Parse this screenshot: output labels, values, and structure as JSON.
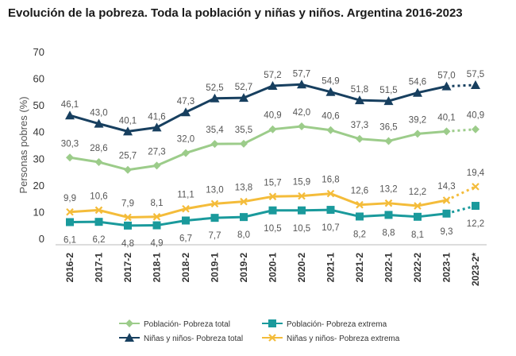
{
  "title": "Evolución de la pobreza. Toda la población y niñas y niños. Argentina 2016-2023",
  "chart_data": {
    "type": "line",
    "title": "Evolución de la pobreza. Toda la población y niñas y niños. Argentina 2016-2023",
    "xlabel": "",
    "ylabel": "Personas pobres (%)",
    "ylim": [
      0,
      70
    ],
    "yticks": [
      0,
      10,
      20,
      30,
      40,
      50,
      60,
      70
    ],
    "grid": false,
    "legend_position": "bottom",
    "categories": [
      "2016-2",
      "2017-1",
      "2017-2",
      "2018-1",
      "2018-2",
      "2019-1",
      "2019-2",
      "2020-1",
      "2020-2",
      "2021-1",
      "2021-2",
      "2022-1",
      "2022-2",
      "2023-1",
      "2023-2*"
    ],
    "projected_from_index": 13,
    "series": [
      {
        "name": "Niñas y niños- Pobreza total",
        "color": "#173f5f",
        "marker": "triangle",
        "values": [
          46.1,
          43.0,
          40.1,
          41.6,
          47.3,
          52.5,
          52.7,
          57.2,
          57.7,
          54.9,
          51.8,
          51.5,
          54.6,
          57.0,
          57.5
        ],
        "labels": [
          "46,1",
          "43,0",
          "40,1",
          "41,6",
          "47,3",
          "52,5",
          "52,7",
          "57,2",
          "57,7",
          "54,9",
          "51,8",
          "51,5",
          "54,6",
          "57,0",
          "57,5"
        ]
      },
      {
        "name": "Población- Pobreza total",
        "color": "#9ccc8a",
        "marker": "diamond",
        "values": [
          30.3,
          28.6,
          25.7,
          27.3,
          32.0,
          35.4,
          35.5,
          40.9,
          42.0,
          40.6,
          37.3,
          36.5,
          39.2,
          40.1,
          40.9
        ],
        "labels": [
          "30,3",
          "28,6",
          "25,7",
          "27,3",
          "32,0",
          "35,4",
          "35,5",
          "40,9",
          "42,0",
          "40,6",
          "37,3",
          "36,5",
          "39,2",
          "40,1",
          "40,9"
        ]
      },
      {
        "name": "Niñas y niños- Pobreza extrema",
        "color": "#f4bc3a",
        "marker": "x",
        "values": [
          9.9,
          10.6,
          7.9,
          8.1,
          11.1,
          13.0,
          13.8,
          15.7,
          15.9,
          16.8,
          12.6,
          13.2,
          12.2,
          14.3,
          19.4
        ],
        "labels": [
          "9,9",
          "10,6",
          "7,9",
          "8,1",
          "11,1",
          "13,0",
          "13,8",
          "15,7",
          "15,9",
          "16,8",
          "12,6",
          "13,2",
          "12,2",
          "14,3",
          "19,4"
        ]
      },
      {
        "name": "Población- Pobreza extrema",
        "color": "#1a9a9c",
        "marker": "square",
        "values": [
          6.1,
          6.2,
          4.8,
          4.9,
          6.7,
          7.7,
          8.0,
          10.5,
          10.5,
          10.7,
          8.2,
          8.8,
          8.1,
          9.3,
          12.2
        ],
        "labels": [
          "6,1",
          "6,2",
          "4,8",
          "4,9",
          "6,7",
          "7,7",
          "8,0",
          "10,5",
          "10,5",
          "10,7",
          "8,2",
          "8,8",
          "8,1",
          "9,3",
          "12,2"
        ]
      }
    ],
    "legend_order": [
      "Población- Pobreza total",
      "Población- Pobreza extrema",
      "Niñas y niños- Pobreza total",
      "Niñas y niños- Pobreza extrema"
    ]
  }
}
